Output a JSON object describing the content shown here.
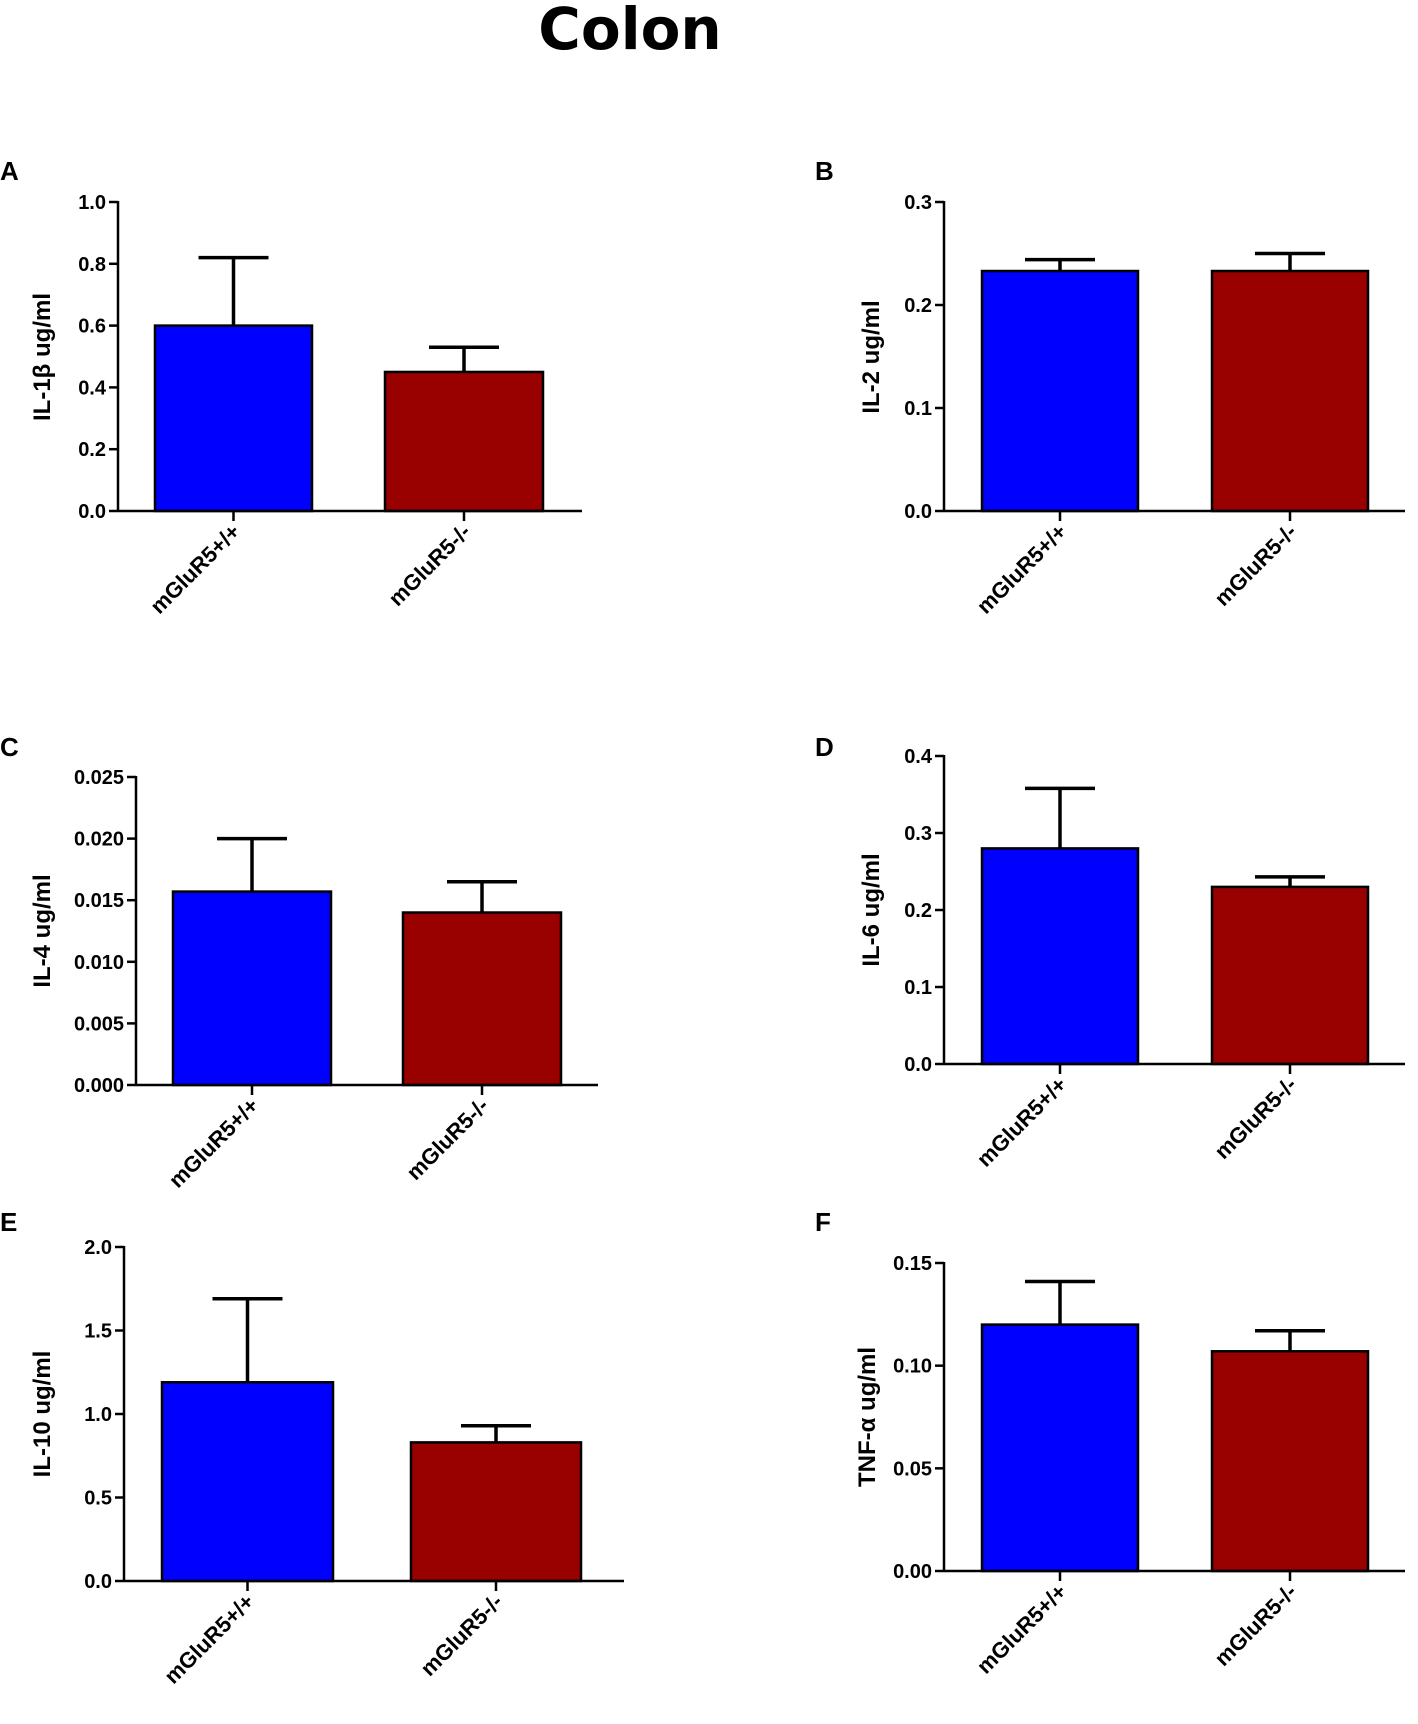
{
  "figure_title": "Colon",
  "colors": {
    "wildtype": "#0000ff",
    "knockout": "#990000",
    "axis": "#000000"
  },
  "chart_data": [
    {
      "panel": "A",
      "type": "bar",
      "ylabel": "IL-1β ug/ml",
      "categories": [
        "mGluR5+/+",
        "mGluR5-/-"
      ],
      "values": [
        0.6,
        0.45
      ],
      "errors": [
        0.22,
        0.08
      ],
      "ylim": [
        0,
        1.0
      ],
      "ticks": [
        0.0,
        0.2,
        0.4,
        0.6,
        0.8,
        1.0
      ],
      "tick_labels": [
        "0.0",
        "0.2",
        "0.4",
        "0.6",
        "0.8",
        "1.0"
      ]
    },
    {
      "panel": "B",
      "type": "bar",
      "ylabel": "IL-2 ug/ml",
      "categories": [
        "mGluR5+/+",
        "mGluR5-/-"
      ],
      "values": [
        0.233,
        0.233
      ],
      "errors": [
        0.011,
        0.017
      ],
      "ylim": [
        0,
        0.3
      ],
      "ticks": [
        0.0,
        0.1,
        0.2,
        0.3
      ],
      "tick_labels": [
        "0.0",
        "0.1",
        "0.2",
        "0.3"
      ]
    },
    {
      "panel": "C",
      "type": "bar",
      "ylabel": "IL-4 ug/ml",
      "categories": [
        "mGluR5+/+",
        "mGluR5-/-"
      ],
      "values": [
        0.0157,
        0.014
      ],
      "errors": [
        0.0043,
        0.0025
      ],
      "ylim": [
        0,
        0.025
      ],
      "ticks": [
        0.0,
        0.005,
        0.01,
        0.015,
        0.02,
        0.025
      ],
      "tick_labels": [
        "0.000",
        "0.005",
        "0.010",
        "0.015",
        "0.020",
        "0.025"
      ]
    },
    {
      "panel": "D",
      "type": "bar",
      "ylabel": "IL-6 ug/ml",
      "categories": [
        "mGluR5+/+",
        "mGluR5-/-"
      ],
      "values": [
        0.28,
        0.23
      ],
      "errors": [
        0.078,
        0.013
      ],
      "ylim": [
        0,
        0.4
      ],
      "ticks": [
        0.0,
        0.1,
        0.2,
        0.3,
        0.4
      ],
      "tick_labels": [
        "0.0",
        "0.1",
        "0.2",
        "0.3",
        "0.4"
      ]
    },
    {
      "panel": "E",
      "type": "bar",
      "ylabel": "IL-10 ug/ml",
      "categories": [
        "mGluR5+/+",
        "mGluR5-/-"
      ],
      "values": [
        1.19,
        0.83
      ],
      "errors": [
        0.5,
        0.1
      ],
      "ylim": [
        0,
        2.0
      ],
      "ticks": [
        0.0,
        0.5,
        1.0,
        1.5,
        2.0
      ],
      "tick_labels": [
        "0.0",
        "0.5",
        "1.0",
        "1.5",
        "2.0"
      ]
    },
    {
      "panel": "F",
      "type": "bar",
      "ylabel": "TNF-α ug/ml",
      "categories": [
        "mGluR5+/+",
        "mGluR5-/-"
      ],
      "values": [
        0.12,
        0.107
      ],
      "errors": [
        0.021,
        0.01
      ],
      "ylim": [
        0,
        0.15
      ],
      "ticks": [
        0.0,
        0.05,
        0.1,
        0.15
      ],
      "tick_labels": [
        "0.00",
        "0.05",
        "0.10",
        "0.15"
      ]
    }
  ]
}
